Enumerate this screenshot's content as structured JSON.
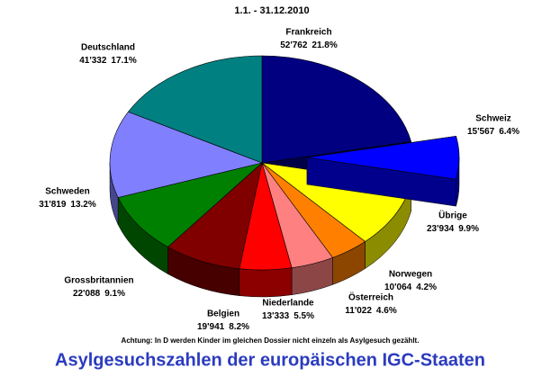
{
  "chart_data": {
    "type": "pie",
    "title": "1.1. - 31.12.2010",
    "note": "Achtung: In D werden Kinder im gleichen Dossier nicht einzeln als Asylgesuch gezählt.",
    "subtitle": "Asylgesuchszahlen der europäischen IGC-Staaten",
    "categories": [
      "Frankreich",
      "Schweiz",
      "Übrige",
      "Norwegen",
      "Österreich",
      "Niederlande",
      "Belgien",
      "Grossbritannien",
      "Schweden",
      "Deutschland"
    ],
    "values": [
      52762,
      15567,
      23934,
      10064,
      11022,
      13333,
      19941,
      22088,
      31819,
      41332
    ],
    "value_labels": [
      "52'762",
      "15'567",
      "23'934",
      "10'064",
      "11'022",
      "13'333",
      "19'941",
      "22'088",
      "31'819",
      "41'332"
    ],
    "shares": [
      21.8,
      6.4,
      9.9,
      4.2,
      4.6,
      5.5,
      8.2,
      9.1,
      13.2,
      17.1
    ],
    "share_labels": [
      "21.8%",
      "6.4%",
      "9.9%",
      "4.2%",
      "4.6%",
      "5.5%",
      "8.2%",
      "9.1%",
      "13.2%",
      "17.1%"
    ],
    "colors": [
      "#000080",
      "#0000ff",
      "#ffff00",
      "#ff8000",
      "#ff8080",
      "#ff0000",
      "#800000",
      "#008000",
      "#8080ff",
      "#008080"
    ],
    "exploded": [
      "Schweiz"
    ]
  }
}
